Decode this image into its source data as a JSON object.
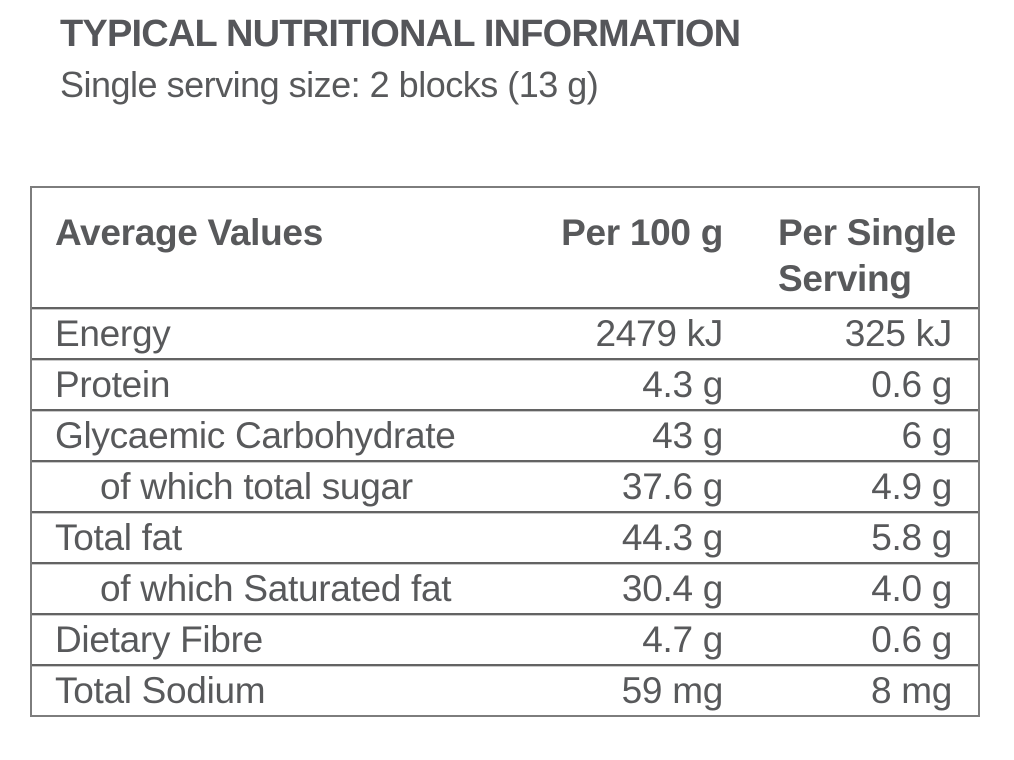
{
  "page": {
    "title": "TYPICAL NUTRITIONAL INFORMATION",
    "subtitle": "Single serving size: 2 blocks (13 g)"
  },
  "table": {
    "headers": {
      "labels": "Average Values",
      "per100g": "Per 100 g",
      "perServing": "Per Single Serving"
    },
    "rows": [
      {
        "label": "Energy",
        "per100g": "2479 kJ",
        "perServing": "325 kJ"
      },
      {
        "label": "Protein",
        "per100g": "4.3 g",
        "perServing": "0.6 g"
      },
      {
        "label": "Glycaemic Carbohydrate",
        "per100g": "43 g",
        "perServing": "6 g"
      },
      {
        "label": "of which total sugar",
        "per100g": "37.6 g",
        "perServing": "4.9 g"
      },
      {
        "label": "Total fat",
        "per100g": "44.3 g",
        "perServing": "5.8 g"
      },
      {
        "label": "of which Saturated fat",
        "per100g": "30.4 g",
        "perServing": "4.0 g"
      },
      {
        "label": "Dietary Fibre",
        "per100g": "4.7 g",
        "perServing": "0.6 g"
      },
      {
        "label": "Total Sodium",
        "per100g": "59 mg",
        "perServing": "8 mg"
      }
    ]
  },
  "colors": {
    "text": "#58595b",
    "border_outer": "#7d7d7d",
    "rule_dark": "#636363",
    "rule_light": "#c9c9c9",
    "background": "#ffffff"
  }
}
